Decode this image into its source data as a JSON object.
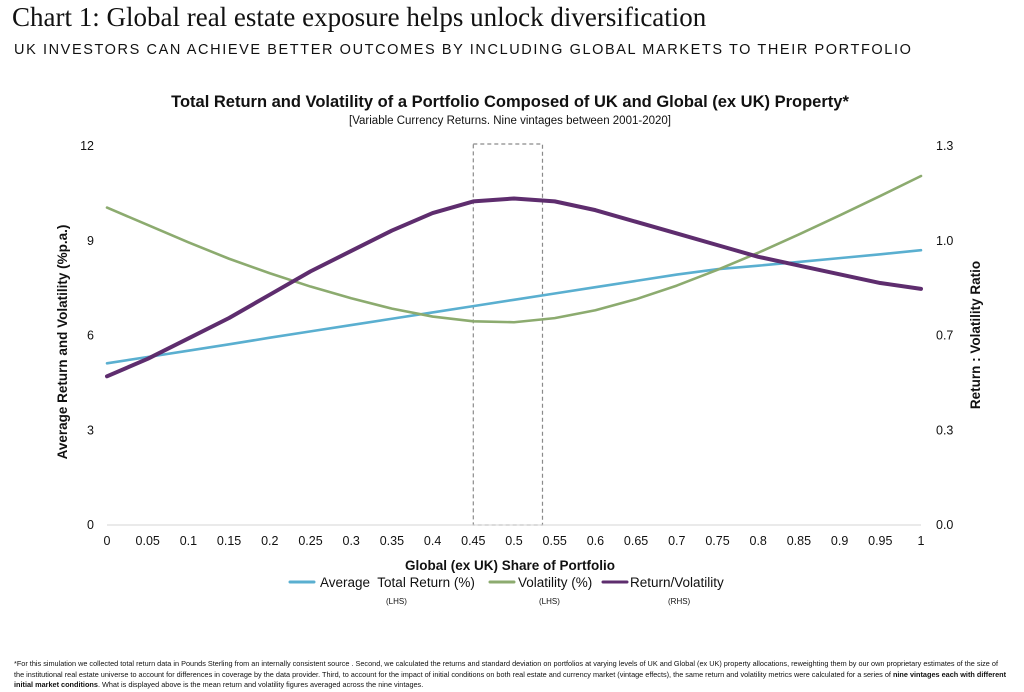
{
  "header": {
    "title": "Chart 1: Global real estate exposure helps unlock diversification",
    "subtitle": "UK INVESTORS CAN ACHIEVE BETTER OUTCOMES BY INCLUDING GLOBAL MARKETS TO THEIR PORTFOLIO"
  },
  "chart_data": {
    "type": "line",
    "title": "Total Return and Volatility of a Portfolio Composed of UK and Global (ex UK) Property*",
    "subtitle": "[Variable Currency Returns. Nine vintages between 2001-2020]",
    "xlabel": "Global (ex UK) Share of Portfolio",
    "ylabel": "Average Return and Volatility (%p.a.)",
    "y2label": "Return : Volatility Ratio",
    "x": [
      0,
      0.05,
      0.1,
      0.15,
      0.2,
      0.25,
      0.3,
      0.35,
      0.4,
      0.45,
      0.5,
      0.55,
      0.6,
      0.65,
      0.7,
      0.75,
      0.8,
      0.85,
      0.9,
      0.95,
      1
    ],
    "x_tick_labels": [
      "0",
      "0.05",
      "0.1",
      "0.15",
      "0.2",
      "0.25",
      "0.3",
      "0.35",
      "0.4",
      "0.45",
      "0.5",
      "0.55",
      "0.6",
      "0.65",
      "0.7",
      "0.75",
      "0.8",
      "0.85",
      "0.9",
      "0.95",
      "1"
    ],
    "ylim": [
      0,
      12
    ],
    "y_ticks": [
      0,
      3,
      6,
      9,
      12
    ],
    "y_tick_labels": [
      "0",
      "3",
      "6",
      "9",
      "12"
    ],
    "y2lim": [
      0,
      1.3
    ],
    "y2_tick_labels": [
      "0.0",
      "0.3",
      "0.7",
      "1.0",
      "1.3"
    ],
    "grid": false,
    "legend_position": "bottom",
    "highlight_box": {
      "x_start": 0.45,
      "x_end": 0.535,
      "y_top": 12
    },
    "series": [
      {
        "name": "Average  Total Return (%)",
        "note": "(LHS)",
        "axis": "left",
        "color": "#5AAFD0",
        "values": [
          5.12,
          5.32,
          5.52,
          5.72,
          5.93,
          6.13,
          6.33,
          6.53,
          6.73,
          6.93,
          7.13,
          7.33,
          7.53,
          7.73,
          7.93,
          8.1,
          8.21,
          8.33,
          8.45,
          8.57,
          8.7
        ]
      },
      {
        "name": "Volatility (%)",
        "note": "(LHS)",
        "axis": "left",
        "color": "#8CAB6F",
        "values": [
          10.05,
          9.5,
          8.95,
          8.43,
          7.97,
          7.55,
          7.18,
          6.85,
          6.6,
          6.45,
          6.42,
          6.55,
          6.8,
          7.15,
          7.58,
          8.08,
          8.62,
          9.2,
          9.8,
          10.42,
          11.05
        ]
      },
      {
        "name": "Return/Volatility",
        "note": "(RHS)",
        "axis": "right",
        "color": "#5E2D6E",
        "values": [
          0.51,
          0.57,
          0.64,
          0.71,
          0.79,
          0.87,
          0.94,
          1.01,
          1.07,
          1.11,
          1.12,
          1.11,
          1.08,
          1.04,
          1.0,
          0.96,
          0.92,
          0.89,
          0.86,
          0.83,
          0.81
        ]
      }
    ]
  },
  "footnote": {
    "part1": "*For this simulation we collected total return data in Pounds Sterling from an internally consistent source . Second, we calculated the returns and standard deviation on portfolios at varying levels of UK and Global (ex UK) property allocations, reweighting them by our own proprietary estimates of the size of the institutional real estate universe  to account for differences in coverage by the data provider. Third, to account for the impact of initial conditions on both real estate and currency market (vintage effects), the same return and volatility metrics were calculated for a series of ",
    "bold": "nine vintages each with different initial market conditions",
    "part2": ". What is displayed above is the mean return and volatility figures averaged across the nine vintages."
  }
}
